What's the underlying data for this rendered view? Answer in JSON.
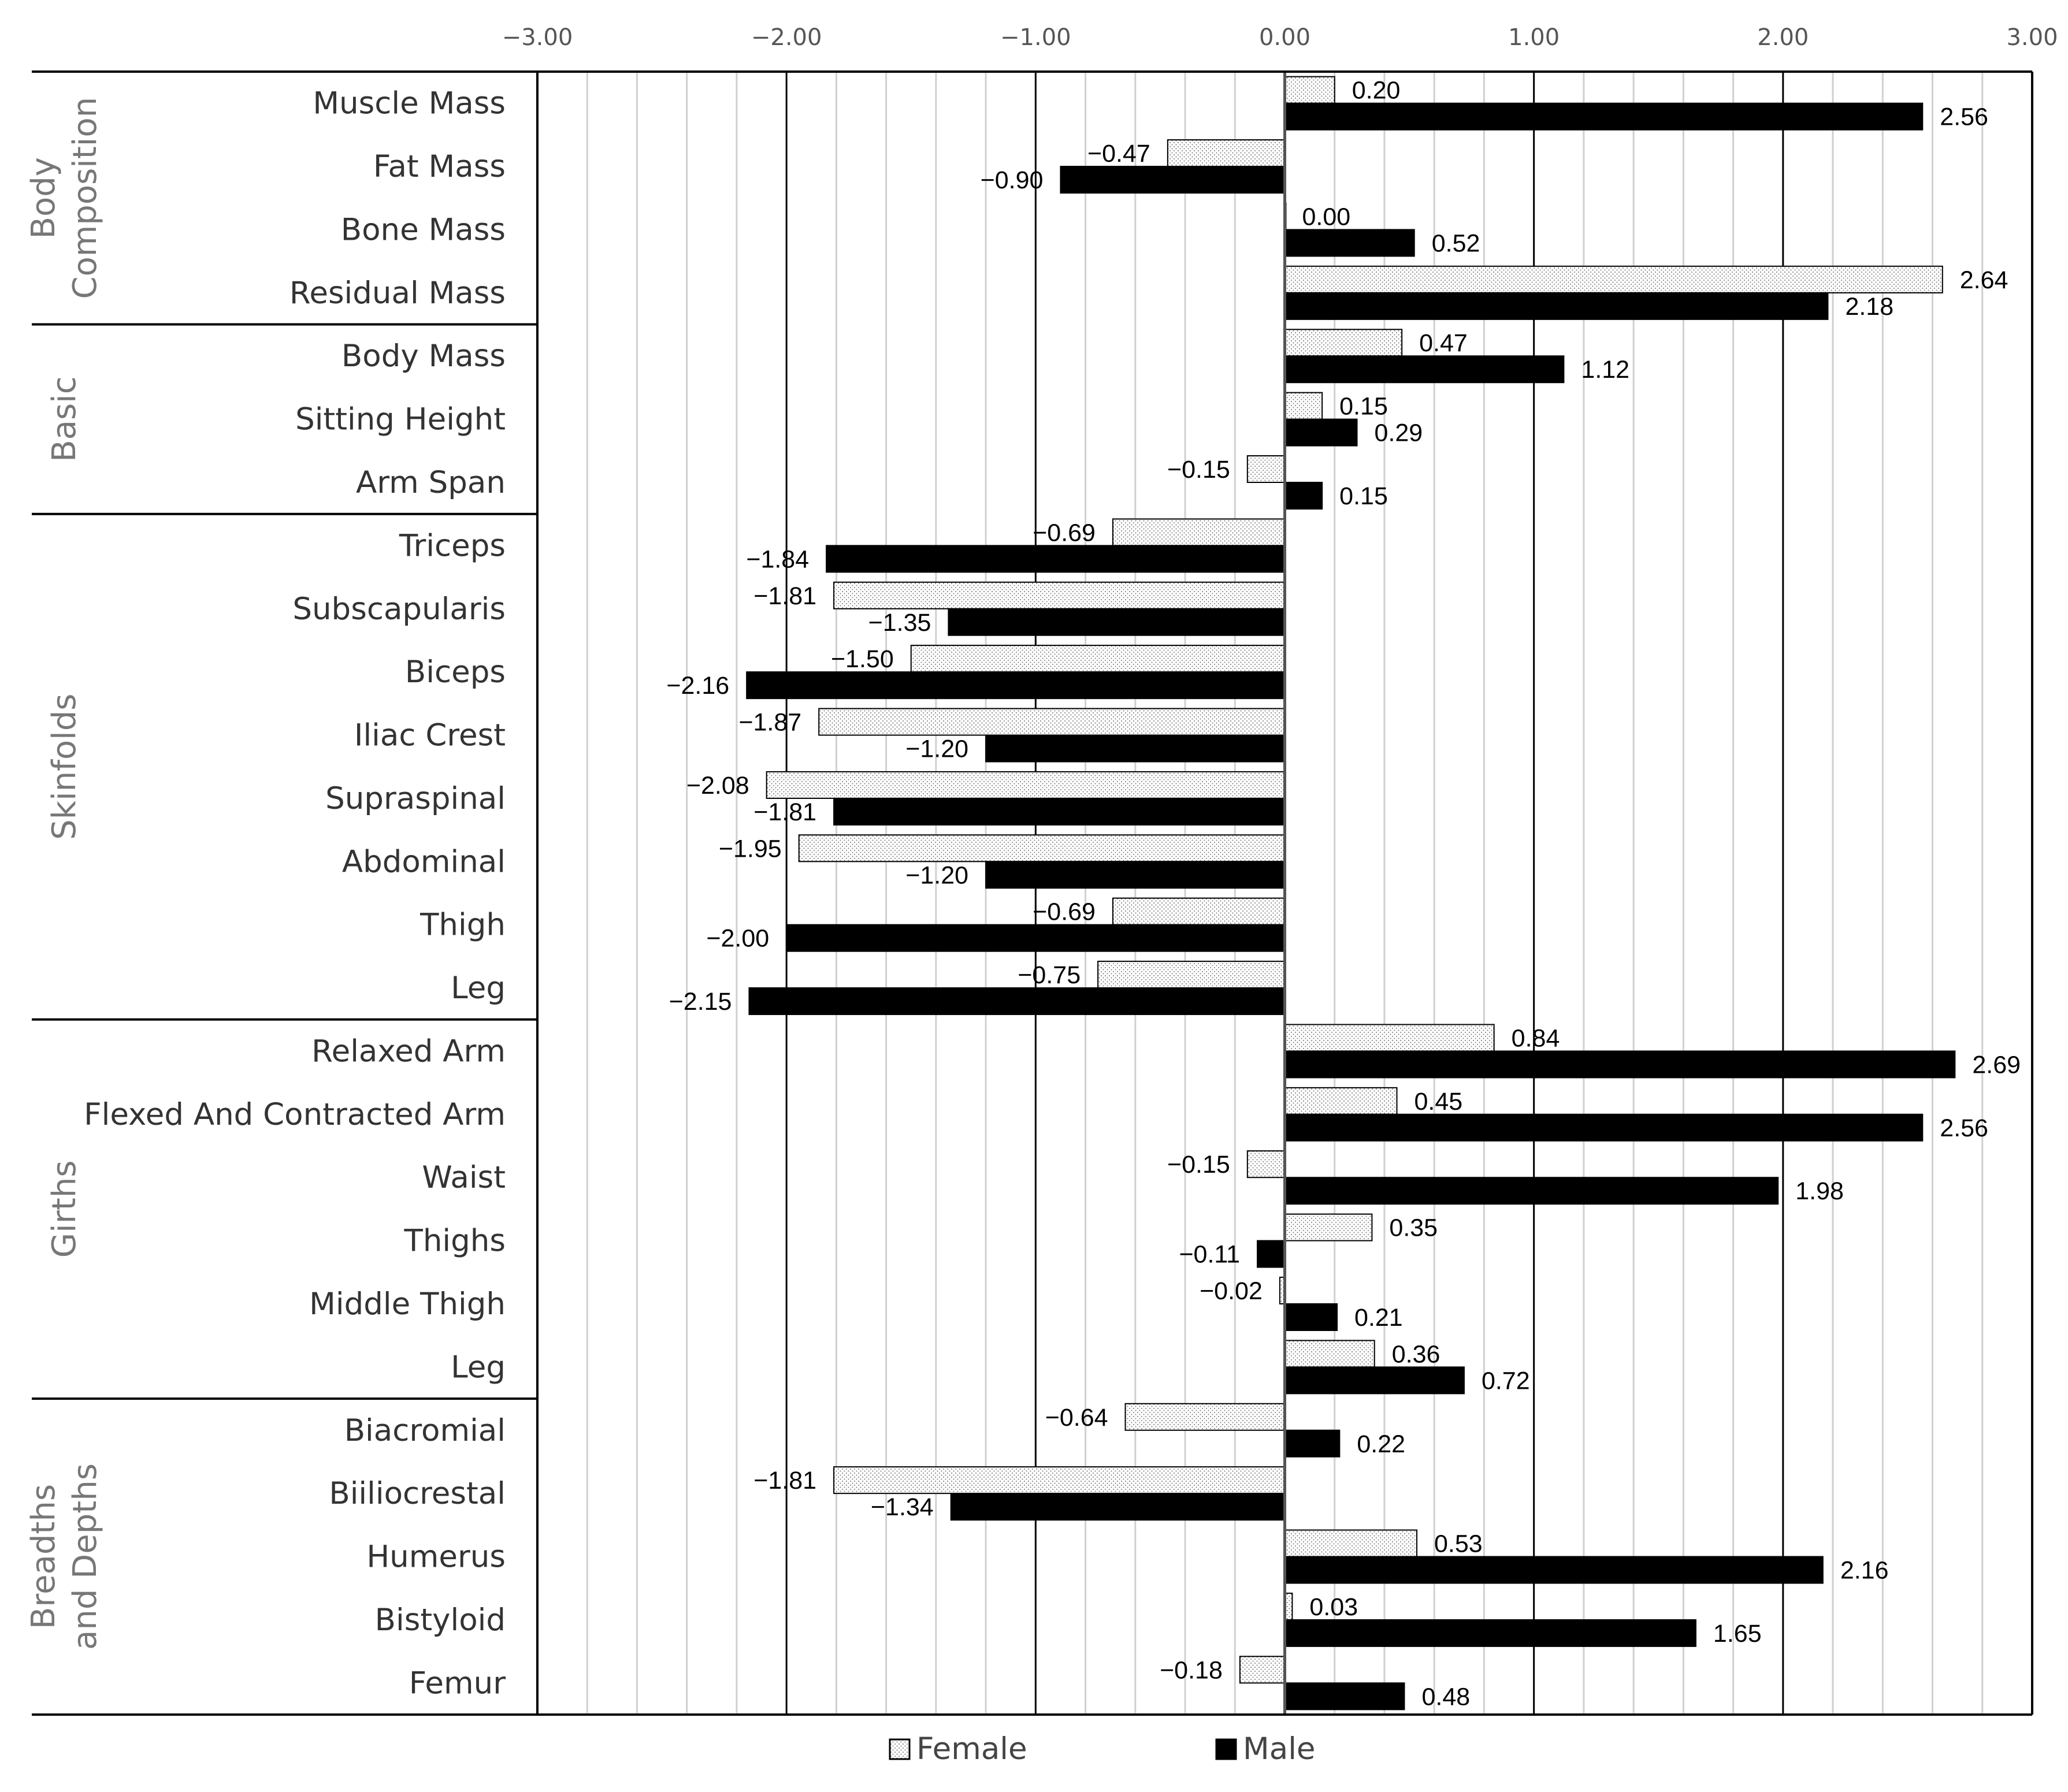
{
  "chart_data": {
    "type": "bar",
    "orientation": "horizontal",
    "title": "",
    "xlabel": "",
    "ylabel": "",
    "xlim": [
      -3,
      3
    ],
    "x_ticks": [
      "−3.00",
      "−2.00",
      "−1.00",
      "0.00",
      "1.00",
      "2.00",
      "3.00"
    ],
    "grid": true,
    "legend_position": "bottom",
    "groups": [
      {
        "name": "Body Composition",
        "lines": [
          "Body",
          "Composition"
        ],
        "start": 0,
        "end": 3
      },
      {
        "name": "Basic",
        "lines": [
          "Basic"
        ],
        "start": 4,
        "end": 6
      },
      {
        "name": "Skinfolds",
        "lines": [
          "Skinfolds"
        ],
        "start": 7,
        "end": 14
      },
      {
        "name": "Girths",
        "lines": [
          "Girths"
        ],
        "start": 15,
        "end": 20
      },
      {
        "name": "Breadths and Depths",
        "lines": [
          "Breadths",
          "and Depths"
        ],
        "start": 21,
        "end": 25
      }
    ],
    "categories": [
      "Muscle Mass",
      "Fat Mass",
      "Bone Mass",
      "Residual Mass",
      "Body Mass",
      "Sitting Height",
      "Arm Span",
      "Triceps",
      "Subscapularis",
      "Biceps",
      "Iliac Crest",
      "Supraspinal",
      "Abdominal",
      "Thigh",
      "Leg",
      "Relaxed Arm",
      "Flexed And Contracted Arm",
      "Waist",
      "Thighs",
      "Middle Thigh",
      "Leg",
      "Biacromial",
      "Biiliocrestal",
      "Humerus",
      "Bistyloid",
      "Femur"
    ],
    "series": [
      {
        "name": "Female",
        "color": "#ffffff",
        "pattern": "dotted",
        "values": [
          0.2,
          -0.47,
          0.0,
          2.64,
          0.47,
          0.15,
          -0.15,
          -0.69,
          -1.81,
          -1.5,
          -1.87,
          -2.08,
          -1.95,
          -0.69,
          -0.75,
          0.84,
          0.45,
          -0.15,
          0.35,
          -0.02,
          0.36,
          -0.64,
          -1.81,
          0.53,
          0.03,
          -0.18
        ],
        "labels": [
          "0.20",
          "−0.47",
          "0.00",
          "2.64",
          "0.47",
          "0.15",
          "−0.15",
          "−0.69",
          "−1.81",
          "−1.50",
          "−1.87",
          "−2.08",
          "−1.95",
          "−0.69",
          "−0.75",
          "0.84",
          "0.45",
          "−0.15",
          "0.35",
          "−0.02",
          "0.36",
          "−0.64",
          "−1.81",
          "0.53",
          "0.03",
          "−0.18"
        ]
      },
      {
        "name": "Male",
        "color": "#000000",
        "pattern": "solid",
        "values": [
          2.56,
          -0.9,
          0.52,
          2.18,
          1.12,
          0.29,
          0.15,
          -1.84,
          -1.35,
          -2.16,
          -1.2,
          -1.81,
          -1.2,
          -2.0,
          -2.15,
          2.69,
          2.56,
          1.98,
          -0.11,
          0.21,
          0.72,
          0.22,
          -1.34,
          2.16,
          1.65,
          0.48
        ],
        "labels": [
          "2.56",
          "−0.90",
          "0.52",
          "2.18",
          "1.12",
          "0.29",
          "0.15",
          "−1.84",
          "−1.35",
          "−2.16",
          "−1.20",
          "−1.81",
          "−1.20",
          "−2.00",
          "−2.15",
          "2.69",
          "2.56",
          "1.98",
          "−0.11",
          "0.21",
          "0.72",
          "0.22",
          "−1.34",
          "2.16",
          "1.65",
          "0.48"
        ]
      }
    ]
  }
}
